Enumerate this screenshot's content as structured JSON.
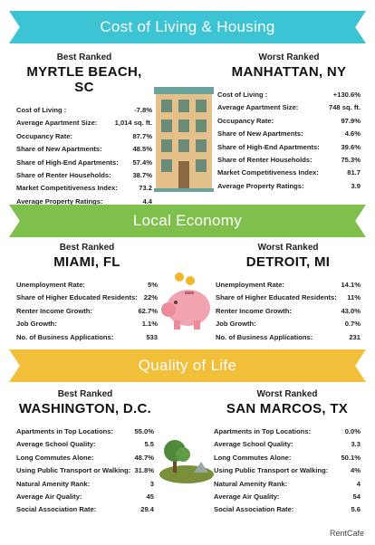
{
  "sections": [
    {
      "title": "Cost of Living & Housing",
      "color": "#3cc3d4",
      "best": {
        "label": "Best Ranked",
        "city": "MYRTLE BEACH, SC",
        "rows": [
          {
            "k": "Cost of Living :",
            "v": "-7.8%"
          },
          {
            "k": "Average Apartment Size:",
            "v": "1,014 sq. ft."
          },
          {
            "k": "Occupancy Rate:",
            "v": "87.7%"
          },
          {
            "k": "Share of New Apartments:",
            "v": "48.5%"
          },
          {
            "k": "Share of High-End Apartments:",
            "v": "57.4%"
          },
          {
            "k": "Share of Renter Households:",
            "v": "38.7%"
          },
          {
            "k": "Market Competitiveness Index:",
            "v": "73.2"
          },
          {
            "k": "Average Property Ratings:",
            "v": "4.4"
          }
        ]
      },
      "worst": {
        "label": "Worst Ranked",
        "city": "MANHATTAN, NY",
        "rows": [
          {
            "k": "Cost of Living :",
            "v": "+130.6%"
          },
          {
            "k": "Average Apartment Size:",
            "v": "748 sq. ft."
          },
          {
            "k": "Occupancy Rate:",
            "v": "97.9%"
          },
          {
            "k": "Share of New Apartments:",
            "v": "4.6%"
          },
          {
            "k": "Share of High-End Apartments:",
            "v": "39.6%"
          },
          {
            "k": "Share of Renter Households:",
            "v": "75.3%"
          },
          {
            "k": "Market Competitiveness Index:",
            "v": "81.7"
          },
          {
            "k": "Average Property Ratings:",
            "v": "3.9"
          }
        ]
      }
    },
    {
      "title": "Local Economy",
      "color": "#7fbf4c",
      "best": {
        "label": "Best Ranked",
        "city": "MIAMI, FL",
        "rows": [
          {
            "k": "Unemployment Rate:",
            "v": "5%"
          },
          {
            "k": "Share of Higher Educated Residents:",
            "v": "22%"
          },
          {
            "k": "Renter Income Growth:",
            "v": "62.7%"
          },
          {
            "k": "Job Growth:",
            "v": "1.1%"
          },
          {
            "k": "No. of Business Applications:",
            "v": "533"
          }
        ]
      },
      "worst": {
        "label": "Worst Ranked",
        "city": "DETROIT, MI",
        "rows": [
          {
            "k": "Unemployment Rate:",
            "v": "14.1%"
          },
          {
            "k": "Share of Higher Educated Residents:",
            "v": "11%"
          },
          {
            "k": "Renter Income Growth:",
            "v": "43.0%"
          },
          {
            "k": "Job Growth:",
            "v": "0.7%"
          },
          {
            "k": "No. of Business Applications:",
            "v": "231"
          }
        ]
      }
    },
    {
      "title": "Quality of Life",
      "color": "#f2bf3a",
      "best": {
        "label": "Best Ranked",
        "city": "WASHINGTON, D.C.",
        "rows": [
          {
            "k": "Apartments in Top Locations:",
            "v": "55.0%"
          },
          {
            "k": "Average School Quality:",
            "v": "5.5"
          },
          {
            "k": "Long Commutes Alone:",
            "v": "48.7%"
          },
          {
            "k": "Using Public Transport or Walking:",
            "v": "31.8%"
          },
          {
            "k": "Natural Amenity Rank:",
            "v": "3"
          },
          {
            "k": "Average Air Quality:",
            "v": "45"
          },
          {
            "k": "Social Association Rate:",
            "v": "29.4"
          }
        ]
      },
      "worst": {
        "label": "Worst Ranked",
        "city": "SAN MARCOS, TX",
        "rows": [
          {
            "k": "Apartments in Top Locations:",
            "v": "0.0%"
          },
          {
            "k": "Average School Quality:",
            "v": "3.3"
          },
          {
            "k": "Long Commutes Alone:",
            "v": "50.1%"
          },
          {
            "k": "Using Public Transport or Walking:",
            "v": "4%"
          },
          {
            "k": "Natural Amenity Rank:",
            "v": "4"
          },
          {
            "k": "Average Air Quality:",
            "v": "54"
          },
          {
            "k": "Social Association Rate:",
            "v": "5.6"
          }
        ]
      }
    }
  ],
  "icons": [
    "apartment-building-icon",
    "piggy-bank-icon",
    "tree-island-icon"
  ],
  "brand": "RentCafe"
}
